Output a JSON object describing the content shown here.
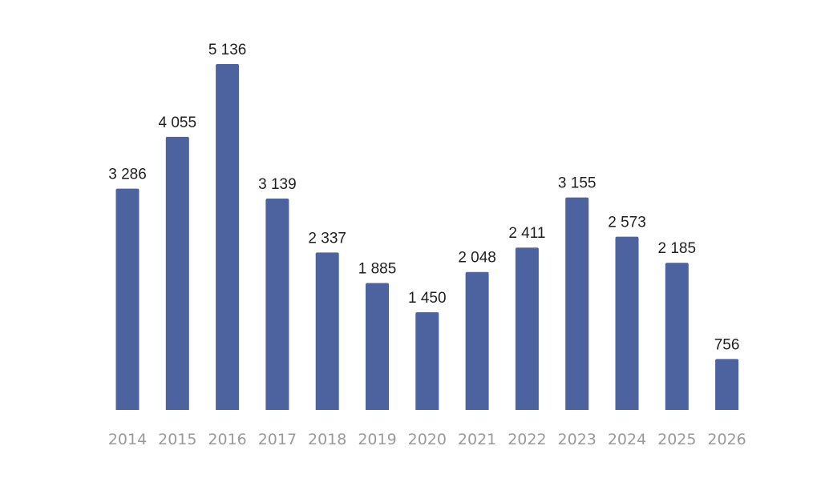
{
  "chart_data": {
    "type": "bar",
    "title": "",
    "xlabel": "",
    "ylabel": "",
    "categories": [
      "2014",
      "2015",
      "2016",
      "2017",
      "2018",
      "2019",
      "2020",
      "2021",
      "2022",
      "2023",
      "2024",
      "2025",
      "2026"
    ],
    "values": [
      3286,
      4055,
      5136,
      3139,
      2337,
      1885,
      1450,
      2048,
      2411,
      3155,
      2573,
      2185,
      756
    ],
    "value_labels": [
      "3 286",
      "4 055",
      "5 136",
      "3 139",
      "2 337",
      "1 885",
      "1 450",
      "2 048",
      "2 411",
      "3 155",
      "2 573",
      "2 185",
      "756"
    ],
    "ylim": [
      0,
      5136
    ],
    "grid": false,
    "legend": "none",
    "bar_color": "#4c63a0"
  }
}
